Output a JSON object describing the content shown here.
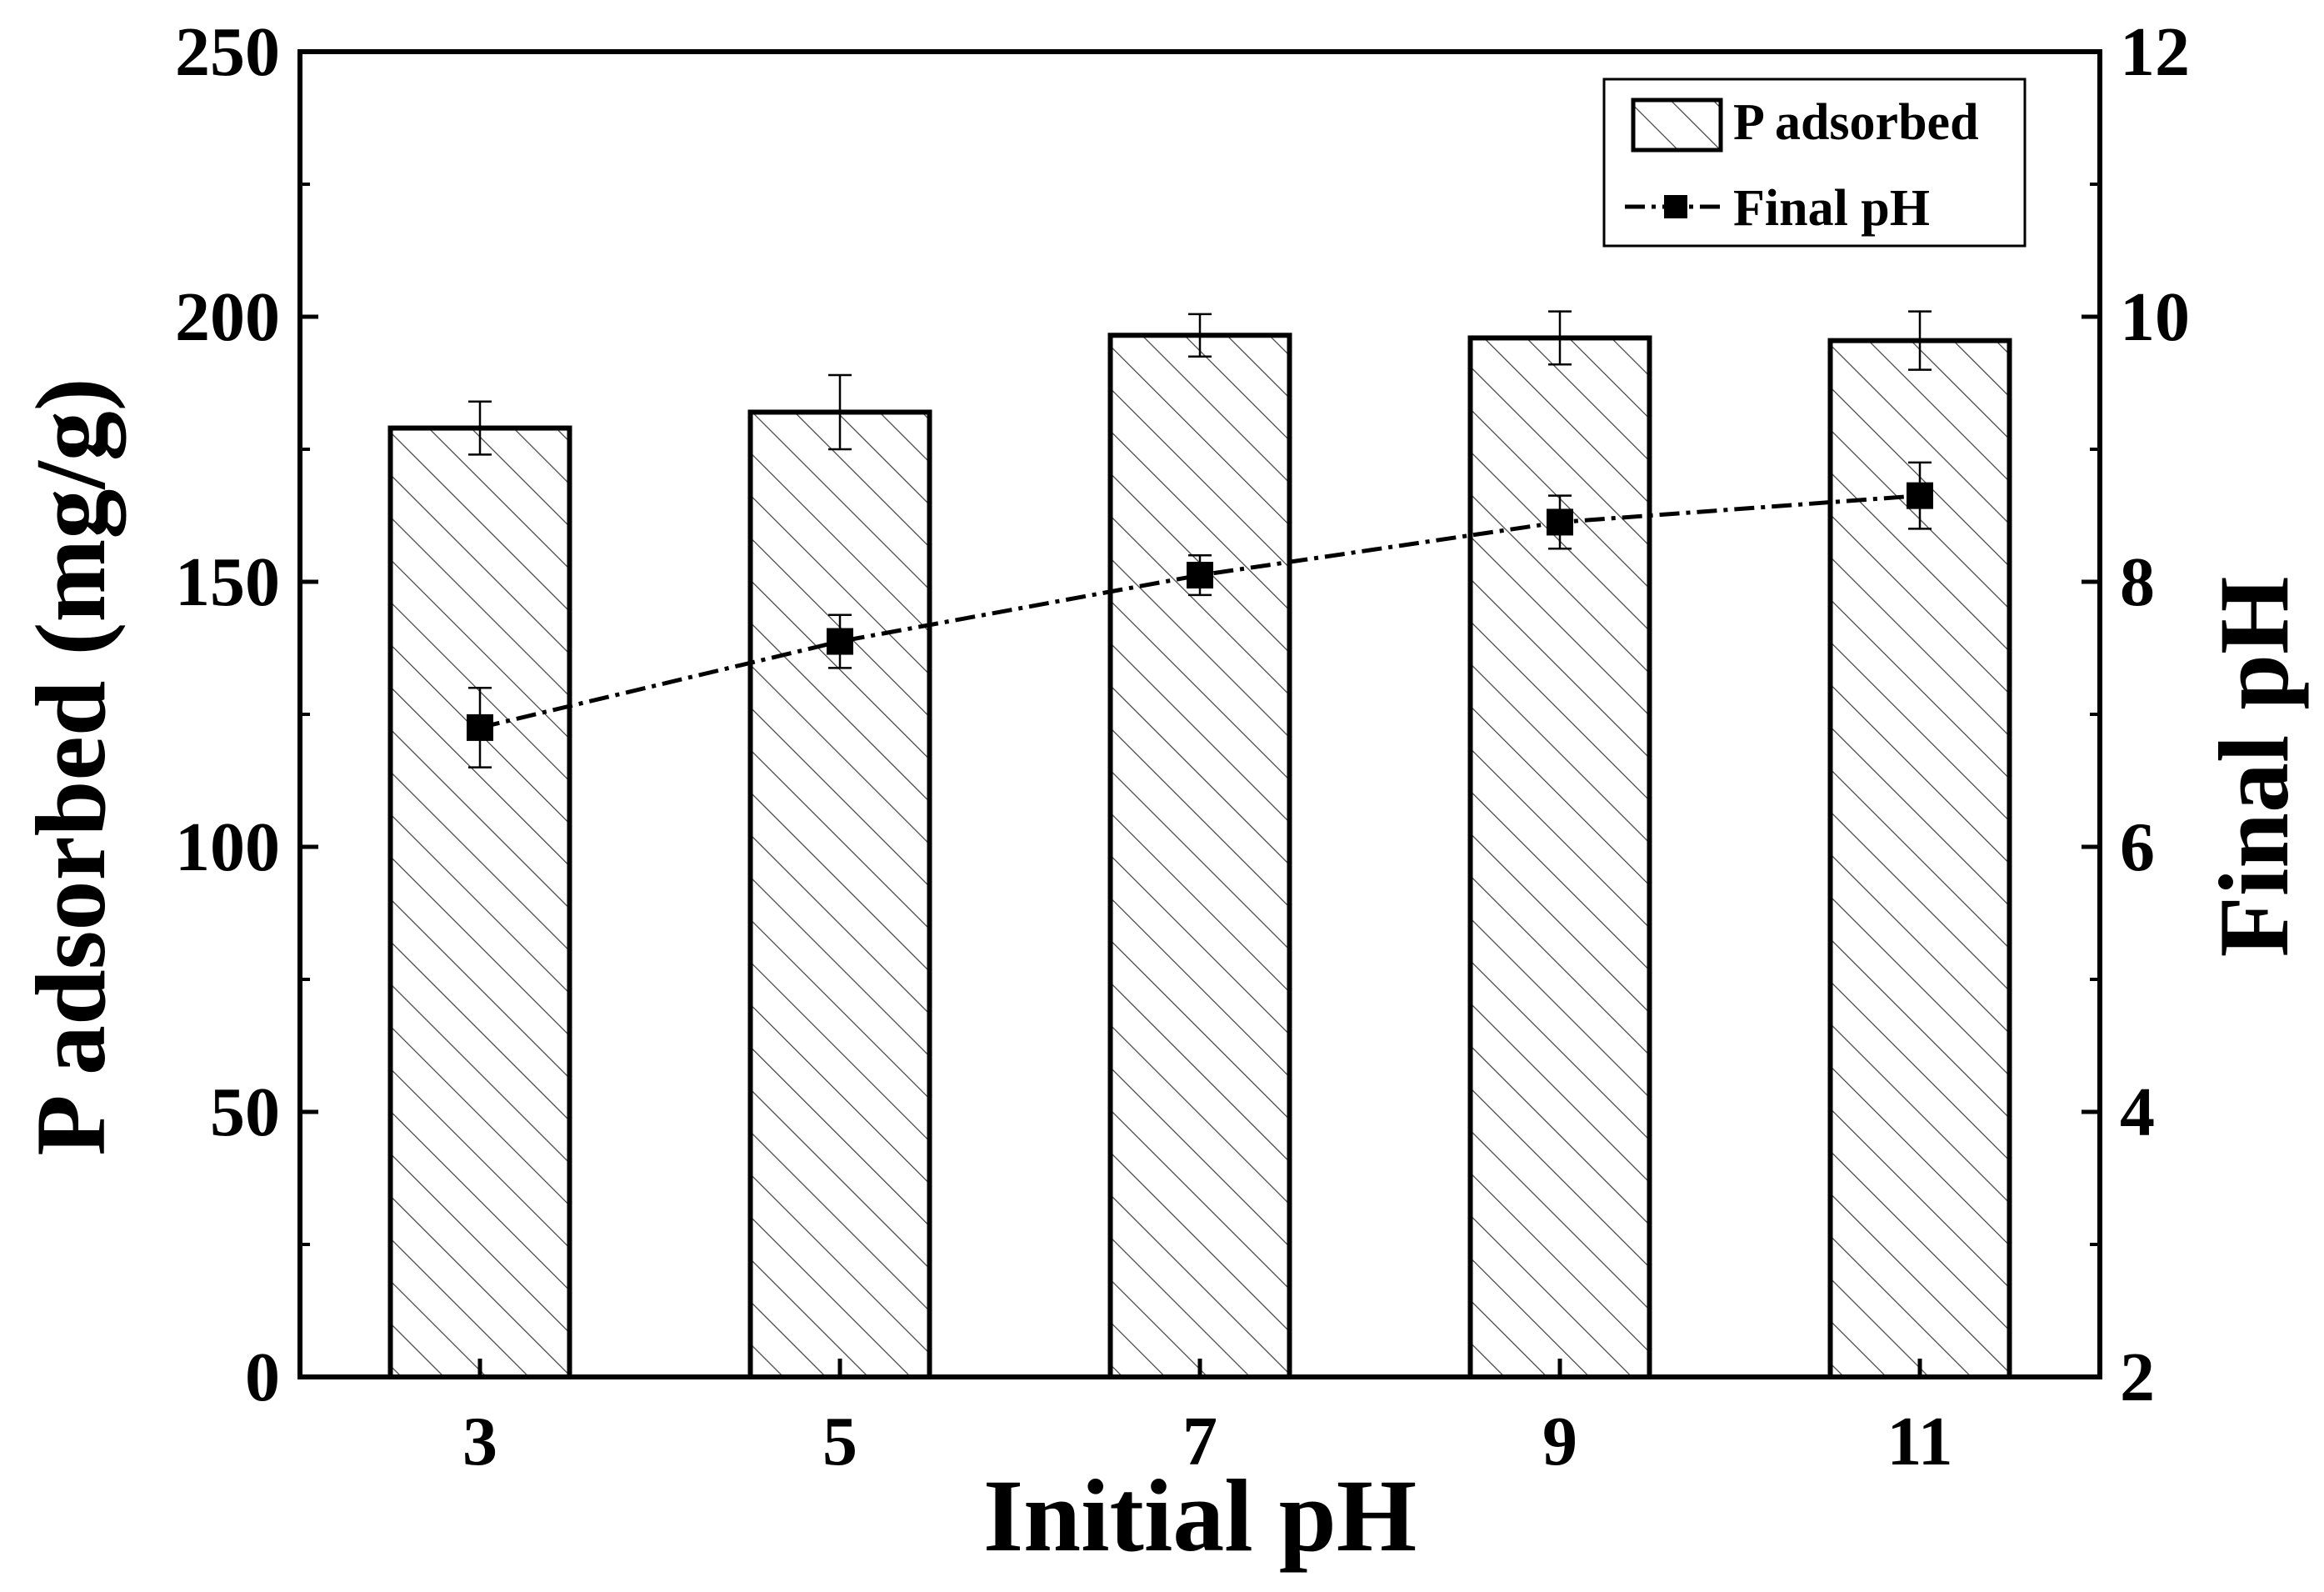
{
  "chart_data": {
    "type": "bar",
    "categories": [
      "3",
      "5",
      "7",
      "9",
      "11"
    ],
    "xlabel": "Initial pH",
    "ylabel": "P adsorbed (mg/g)",
    "y2label": "Final pH",
    "ylim": [
      0,
      250
    ],
    "y2lim": [
      2,
      12
    ],
    "yticks": [
      "0",
      "50",
      "100",
      "150",
      "200",
      "250"
    ],
    "y2ticks": [
      "2",
      "4",
      "6",
      "8",
      "10",
      "12"
    ],
    "grid": false,
    "legend_position": "top-right",
    "series": [
      {
        "name": "P adsorbed",
        "kind": "bar",
        "axis": "left",
        "values": [
          179,
          182,
          196.5,
          196,
          195.5
        ],
        "errors": [
          5,
          7,
          4,
          5,
          5.5
        ]
      },
      {
        "name": "Final pH",
        "kind": "line",
        "axis": "right",
        "values": [
          6.9,
          7.55,
          8.05,
          8.45,
          8.65
        ],
        "errors": [
          0.3,
          0.2,
          0.15,
          0.2,
          0.25
        ]
      }
    ],
    "colors": {
      "bar_fill": "#ffffff",
      "bar_hatch": "#444444",
      "axis": "#000000",
      "line": "#000000"
    }
  }
}
